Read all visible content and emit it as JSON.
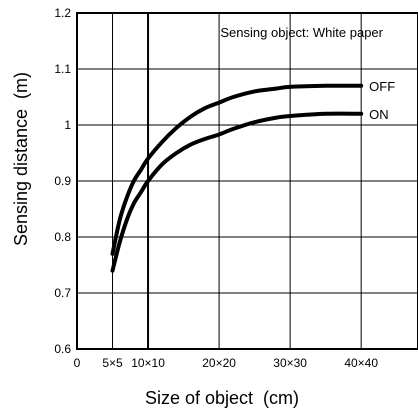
{
  "chart_data": {
    "type": "line",
    "title": "",
    "annotation": "Sensing object: White paper",
    "xlabel": "Size of object  (cm)",
    "ylabel": "Sensing distance  (m)",
    "x_ticks": [
      {
        "value": 0,
        "label": "0"
      },
      {
        "value": 5,
        "label": "5×5"
      },
      {
        "value": 10,
        "label": "10×10"
      },
      {
        "value": 20,
        "label": "20×20"
      },
      {
        "value": 30,
        "label": "30×30"
      },
      {
        "value": 40,
        "label": "40×40"
      }
    ],
    "y_ticks": [
      {
        "value": 0.6,
        "label": "0.6"
      },
      {
        "value": 0.7,
        "label": "0.7"
      },
      {
        "value": 0.8,
        "label": "0.8"
      },
      {
        "value": 0.9,
        "label": "0.9"
      },
      {
        "value": 1.0,
        "label": "1"
      },
      {
        "value": 1.1,
        "label": "1.1"
      },
      {
        "value": 1.2,
        "label": "1.2"
      }
    ],
    "xlim": [
      0,
      48
    ],
    "ylim": [
      0.6,
      1.2
    ],
    "grid": true,
    "series": [
      {
        "name": "OFF",
        "points": [
          [
            5,
            0.77
          ],
          [
            6,
            0.83
          ],
          [
            7,
            0.87
          ],
          [
            8,
            0.9
          ],
          [
            9,
            0.92
          ],
          [
            10,
            0.94
          ],
          [
            12,
            0.97
          ],
          [
            14,
            0.995
          ],
          [
            16,
            1.015
          ],
          [
            18,
            1.03
          ],
          [
            20,
            1.04
          ],
          [
            22,
            1.05
          ],
          [
            25,
            1.06
          ],
          [
            28,
            1.065
          ],
          [
            30,
            1.068
          ],
          [
            35,
            1.07
          ],
          [
            40,
            1.07
          ]
        ]
      },
      {
        "name": "ON",
        "points": [
          [
            5,
            0.74
          ],
          [
            6,
            0.79
          ],
          [
            7,
            0.83
          ],
          [
            8,
            0.86
          ],
          [
            9,
            0.88
          ],
          [
            10,
            0.9
          ],
          [
            12,
            0.93
          ],
          [
            14,
            0.95
          ],
          [
            16,
            0.965
          ],
          [
            18,
            0.975
          ],
          [
            20,
            0.983
          ],
          [
            22,
            0.993
          ],
          [
            25,
            1.005
          ],
          [
            28,
            1.013
          ],
          [
            30,
            1.016
          ],
          [
            35,
            1.02
          ],
          [
            40,
            1.02
          ]
        ]
      }
    ],
    "colors": {
      "line": "#000000",
      "grid": "#000000",
      "background": "#ffffff"
    }
  }
}
